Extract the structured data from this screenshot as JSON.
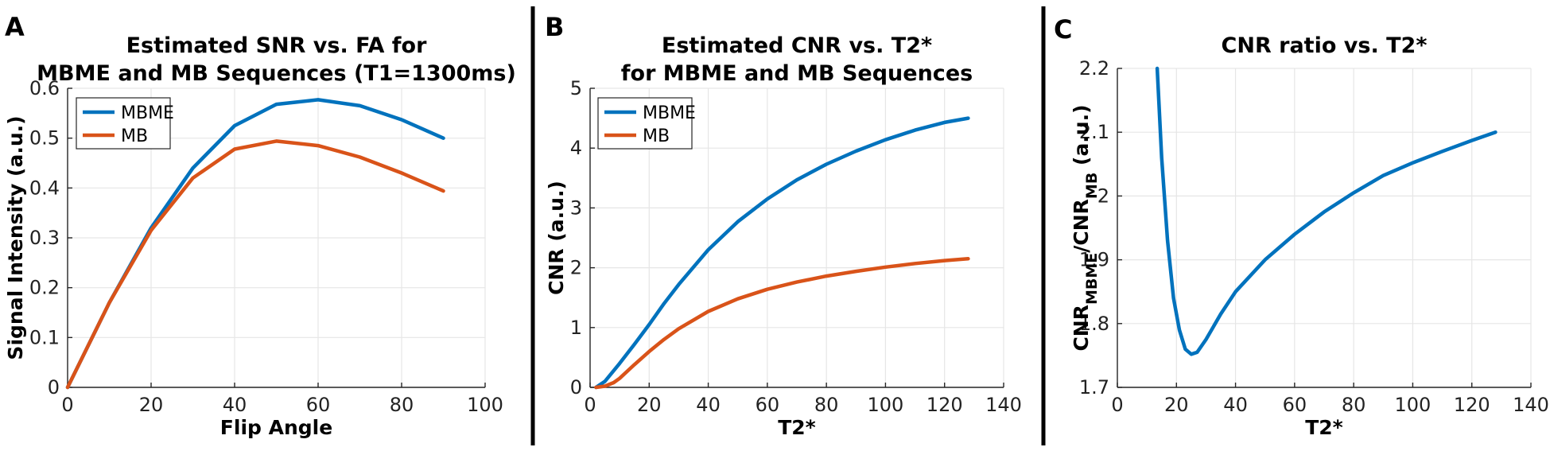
{
  "colors": {
    "mbme": "#0072BD",
    "mb": "#D95319"
  },
  "chart_data": [
    {
      "type": "line",
      "panel_label": "A",
      "title_lines": [
        "Estimated SNR vs. FA for",
        "MBME and MB Sequences (T1=1300ms)"
      ],
      "xlabel": "Flip Angle",
      "ylabel": "Signal Intensity (a.u.)",
      "xlim": [
        0,
        100
      ],
      "ylim": [
        0,
        0.6
      ],
      "xticks": [
        0,
        20,
        40,
        60,
        80,
        100
      ],
      "yticks": [
        0,
        0.1,
        0.2,
        0.3,
        0.4,
        0.5,
        0.6
      ],
      "legend": [
        "MBME",
        "MB"
      ],
      "series": [
        {
          "name": "MBME",
          "color": "#0072BD",
          "x": [
            0,
            10,
            20,
            30,
            40,
            50,
            60,
            70,
            80,
            90
          ],
          "y": [
            0,
            0.17,
            0.32,
            0.44,
            0.525,
            0.568,
            0.577,
            0.565,
            0.537,
            0.5
          ]
        },
        {
          "name": "MB",
          "color": "#D95319",
          "x": [
            0,
            10,
            20,
            30,
            40,
            50,
            60,
            70,
            80,
            90
          ],
          "y": [
            0,
            0.17,
            0.315,
            0.42,
            0.478,
            0.494,
            0.485,
            0.462,
            0.43,
            0.394
          ]
        }
      ]
    },
    {
      "type": "line",
      "panel_label": "B",
      "title_lines": [
        "Estimated CNR vs. T2*",
        "for MBME and MB Sequences"
      ],
      "xlabel": "T2*",
      "ylabel": "CNR (a.u.)",
      "xlim": [
        0,
        140
      ],
      "ylim": [
        0,
        5
      ],
      "xticks": [
        0,
        20,
        40,
        60,
        80,
        100,
        120,
        140
      ],
      "yticks": [
        0,
        1,
        2,
        3,
        4,
        5
      ],
      "legend": [
        "MBME",
        "MB"
      ],
      "series": [
        {
          "name": "MBME",
          "color": "#0072BD",
          "x": [
            2,
            5,
            10,
            15,
            20,
            25,
            30,
            40,
            50,
            60,
            70,
            80,
            90,
            100,
            110,
            120,
            128
          ],
          "y": [
            0,
            0.1,
            0.4,
            0.72,
            1.05,
            1.4,
            1.72,
            2.3,
            2.77,
            3.15,
            3.47,
            3.73,
            3.95,
            4.14,
            4.3,
            4.43,
            4.5
          ]
        },
        {
          "name": "MB",
          "color": "#D95319",
          "x": [
            2,
            5,
            8,
            10,
            15,
            20,
            25,
            30,
            40,
            50,
            60,
            70,
            80,
            90,
            100,
            110,
            120,
            128
          ],
          "y": [
            0,
            0.02,
            0.08,
            0.15,
            0.38,
            0.6,
            0.8,
            0.98,
            1.27,
            1.48,
            1.64,
            1.76,
            1.86,
            1.94,
            2.01,
            2.07,
            2.12,
            2.15
          ]
        }
      ]
    },
    {
      "type": "line",
      "panel_label": "C",
      "title_lines": [
        "CNR ratio vs. T2*"
      ],
      "xlabel": "T2*",
      "ylabel_parts": [
        {
          "text": "CNR",
          "sub": false
        },
        {
          "text": "MBME",
          "sub": true
        },
        {
          "text": "/CNR",
          "sub": false
        },
        {
          "text": "MB",
          "sub": true
        },
        {
          "text": " (a.u.)",
          "sub": false
        }
      ],
      "xlim": [
        0,
        140
      ],
      "ylim": [
        1.7,
        2.2
      ],
      "xticks": [
        0,
        20,
        40,
        60,
        80,
        100,
        120,
        140
      ],
      "yticks": [
        1.7,
        1.8,
        1.9,
        2,
        2.1,
        2.2
      ],
      "series": [
        {
          "name": "CNR ratio",
          "color": "#0072BD",
          "x": [
            13.5,
            15,
            17,
            19,
            21,
            23,
            25,
            27,
            30,
            35,
            40,
            50,
            60,
            70,
            80,
            90,
            100,
            110,
            120,
            128
          ],
          "y": [
            2.2,
            2.06,
            1.93,
            1.84,
            1.79,
            1.76,
            1.752,
            1.755,
            1.775,
            1.815,
            1.85,
            1.9,
            1.94,
            1.975,
            2.005,
            2.032,
            2.052,
            2.07,
            2.087,
            2.1
          ]
        }
      ]
    }
  ]
}
